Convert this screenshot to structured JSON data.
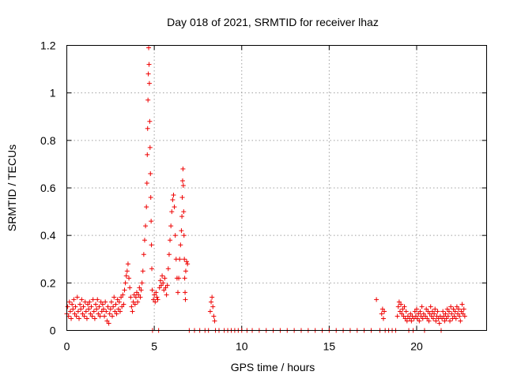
{
  "chart_data": {
    "type": "scatter",
    "title": "Day 018 of 2021, SRMTID for receiver lhaz",
    "xlabel": "GPS time / hours",
    "ylabel": "SRMTID / TECUs",
    "xlim": [
      0,
      24
    ],
    "ylim": [
      0,
      1.2
    ],
    "x_ticks": [
      0,
      5,
      10,
      15,
      20
    ],
    "x_tick_labels": [
      "0",
      "5",
      "10",
      "15",
      "20"
    ],
    "y_ticks": [
      0,
      0.2,
      0.4,
      0.6,
      0.8,
      1.0,
      1.2
    ],
    "y_tick_labels": [
      "0",
      "0.2",
      "0.4",
      "0.6",
      "0.8",
      "1",
      "1.2"
    ],
    "grid": true,
    "marker": "+",
    "color": "#ee0000",
    "series": [
      {
        "name": "lhaz",
        "points": [
          [
            0.0,
            0.07
          ],
          [
            0.05,
            0.1
          ],
          [
            0.1,
            0.06
          ],
          [
            0.15,
            0.12
          ],
          [
            0.2,
            0.08
          ],
          [
            0.25,
            0.05
          ],
          [
            0.3,
            0.11
          ],
          [
            0.35,
            0.09
          ],
          [
            0.4,
            0.13
          ],
          [
            0.45,
            0.07
          ],
          [
            0.5,
            0.1
          ],
          [
            0.55,
            0.06
          ],
          [
            0.6,
            0.14
          ],
          [
            0.65,
            0.08
          ],
          [
            0.7,
            0.05
          ],
          [
            0.75,
            0.11
          ],
          [
            0.8,
            0.09
          ],
          [
            0.85,
            0.13
          ],
          [
            0.9,
            0.07
          ],
          [
            0.95,
            0.1
          ],
          [
            1.0,
            0.06
          ],
          [
            1.05,
            0.12
          ],
          [
            1.1,
            0.08
          ],
          [
            1.15,
            0.05
          ],
          [
            1.2,
            0.11
          ],
          [
            1.25,
            0.09
          ],
          [
            1.3,
            0.12
          ],
          [
            1.35,
            0.07
          ],
          [
            1.4,
            0.1
          ],
          [
            1.45,
            0.06
          ],
          [
            1.5,
            0.13
          ],
          [
            1.55,
            0.08
          ],
          [
            1.6,
            0.05
          ],
          [
            1.65,
            0.11
          ],
          [
            1.7,
            0.09
          ],
          [
            1.75,
            0.13
          ],
          [
            1.8,
            0.07
          ],
          [
            1.85,
            0.1
          ],
          [
            1.9,
            0.06
          ],
          [
            1.95,
            0.12
          ],
          [
            2.0,
            0.08
          ],
          [
            2.05,
            0.11
          ],
          [
            2.1,
            0.09
          ],
          [
            2.15,
            0.06
          ],
          [
            2.2,
            0.12
          ],
          [
            2.25,
            0.08
          ],
          [
            2.3,
            0.04
          ],
          [
            2.35,
            0.1
          ],
          [
            2.4,
            0.03
          ],
          [
            2.45,
            0.07
          ],
          [
            2.5,
            0.09
          ],
          [
            2.55,
            0.12
          ],
          [
            2.6,
            0.06
          ],
          [
            2.65,
            0.1
          ],
          [
            2.7,
            0.14
          ],
          [
            2.75,
            0.08
          ],
          [
            2.8,
            0.11
          ],
          [
            2.85,
            0.07
          ],
          [
            2.9,
            0.13
          ],
          [
            2.95,
            0.09
          ],
          [
            3.0,
            0.12
          ],
          [
            3.05,
            0.08
          ],
          [
            3.1,
            0.14
          ],
          [
            3.15,
            0.1
          ],
          [
            3.2,
            0.15
          ],
          [
            3.25,
            0.11
          ],
          [
            3.3,
            0.17
          ],
          [
            3.35,
            0.2
          ],
          [
            3.4,
            0.23
          ],
          [
            3.45,
            0.25
          ],
          [
            3.5,
            0.28
          ],
          [
            3.55,
            0.22
          ],
          [
            3.6,
            0.18
          ],
          [
            3.65,
            0.14
          ],
          [
            3.7,
            0.1
          ],
          [
            3.75,
            0.08
          ],
          [
            3.8,
            0.12
          ],
          [
            3.85,
            0.15
          ],
          [
            3.9,
            0.11
          ],
          [
            3.95,
            0.14
          ],
          [
            4.0,
            0.16
          ],
          [
            4.05,
            0.12
          ],
          [
            4.1,
            0.15
          ],
          [
            4.15,
            0.18
          ],
          [
            4.2,
            0.14
          ],
          [
            4.25,
            0.17
          ],
          [
            4.3,
            0.2
          ],
          [
            4.35,
            0.25
          ],
          [
            4.4,
            0.32
          ],
          [
            4.45,
            0.38
          ],
          [
            4.5,
            0.44
          ],
          [
            4.55,
            0.52
          ],
          [
            4.58,
            0.62
          ],
          [
            4.6,
            0.74
          ],
          [
            4.62,
            0.85
          ],
          [
            4.64,
            0.97
          ],
          [
            4.66,
            1.08
          ],
          [
            4.68,
            1.19
          ],
          [
            4.7,
            1.12
          ],
          [
            4.72,
            1.04
          ],
          [
            4.74,
            0.88
          ],
          [
            4.76,
            0.77
          ],
          [
            4.78,
            0.66
          ],
          [
            4.8,
            0.56
          ],
          [
            4.82,
            0.46
          ],
          [
            4.84,
            0.36
          ],
          [
            4.86,
            0.26
          ],
          [
            4.88,
            0.17
          ],
          [
            4.9,
            0.0
          ],
          [
            4.95,
            0.13
          ],
          [
            5.0,
            0.15
          ],
          [
            5.05,
            0.12
          ],
          [
            5.1,
            0.16
          ],
          [
            5.15,
            0.14
          ],
          [
            5.2,
            0.13
          ],
          [
            5.25,
            0.0
          ],
          [
            5.3,
            0.18
          ],
          [
            5.35,
            0.21
          ],
          [
            5.4,
            0.19
          ],
          [
            5.45,
            0.23
          ],
          [
            5.5,
            0.2
          ],
          [
            5.55,
            0.17
          ],
          [
            5.6,
            0.22
          ],
          [
            5.65,
            0.18
          ],
          [
            5.7,
            0.15
          ],
          [
            5.75,
            0.19
          ],
          [
            5.8,
            0.26
          ],
          [
            5.85,
            0.32
          ],
          [
            5.9,
            0.38
          ],
          [
            5.95,
            0.44
          ],
          [
            6.0,
            0.5
          ],
          [
            6.05,
            0.55
          ],
          [
            6.1,
            0.57
          ],
          [
            6.15,
            0.52
          ],
          [
            6.2,
            0.4
          ],
          [
            6.25,
            0.3
          ],
          [
            6.3,
            0.22
          ],
          [
            6.35,
            0.16
          ],
          [
            6.4,
            0.22
          ],
          [
            6.45,
            0.3
          ],
          [
            6.5,
            0.36
          ],
          [
            6.55,
            0.42
          ],
          [
            6.58,
            0.48
          ],
          [
            6.6,
            0.56
          ],
          [
            6.62,
            0.63
          ],
          [
            6.64,
            0.68
          ],
          [
            6.66,
            0.61
          ],
          [
            6.68,
            0.5
          ],
          [
            6.7,
            0.4
          ],
          [
            6.72,
            0.3
          ],
          [
            6.74,
            0.22
          ],
          [
            6.76,
            0.16
          ],
          [
            6.78,
            0.13
          ],
          [
            6.8,
            0.25
          ],
          [
            6.85,
            0.29
          ],
          [
            6.9,
            0.28
          ],
          [
            7.0,
            0.0
          ],
          [
            7.3,
            0.0
          ],
          [
            7.6,
            0.0
          ],
          [
            7.9,
            0.0
          ],
          [
            8.1,
            0.0
          ],
          [
            8.2,
            0.08
          ],
          [
            8.25,
            0.12
          ],
          [
            8.3,
            0.14
          ],
          [
            8.35,
            0.1
          ],
          [
            8.4,
            0.06
          ],
          [
            8.45,
            0.04
          ],
          [
            8.5,
            0.0
          ],
          [
            8.7,
            0.0
          ],
          [
            9.0,
            0.0
          ],
          [
            9.2,
            0.0
          ],
          [
            9.4,
            0.0
          ],
          [
            9.6,
            0.0
          ],
          [
            9.8,
            0.0
          ],
          [
            10.0,
            0.0
          ],
          [
            10.3,
            0.0
          ],
          [
            10.6,
            0.0
          ],
          [
            11.0,
            0.0
          ],
          [
            11.4,
            0.0
          ],
          [
            11.8,
            0.0
          ],
          [
            12.2,
            0.0
          ],
          [
            12.6,
            0.0
          ],
          [
            13.0,
            0.0
          ],
          [
            13.4,
            0.0
          ],
          [
            13.8,
            0.0
          ],
          [
            14.2,
            0.0
          ],
          [
            14.6,
            0.0
          ],
          [
            15.0,
            0.0
          ],
          [
            15.4,
            0.0
          ],
          [
            15.8,
            0.0
          ],
          [
            16.2,
            0.0
          ],
          [
            16.6,
            0.0
          ],
          [
            17.0,
            0.0
          ],
          [
            17.4,
            0.0
          ],
          [
            17.7,
            0.13
          ],
          [
            17.9,
            0.0
          ],
          [
            18.0,
            0.07
          ],
          [
            18.05,
            0.09
          ],
          [
            18.1,
            0.05
          ],
          [
            18.15,
            0.08
          ],
          [
            18.2,
            0.0
          ],
          [
            18.4,
            0.0
          ],
          [
            18.6,
            0.0
          ],
          [
            18.8,
            0.0
          ],
          [
            18.9,
            0.06
          ],
          [
            18.95,
            0.1
          ],
          [
            19.0,
            0.12
          ],
          [
            19.05,
            0.08
          ],
          [
            19.1,
            0.11
          ],
          [
            19.15,
            0.07
          ],
          [
            19.2,
            0.09
          ],
          [
            19.25,
            0.06
          ],
          [
            19.3,
            0.1
          ],
          [
            19.35,
            0.05
          ],
          [
            19.4,
            0.08
          ],
          [
            19.45,
            0.04
          ],
          [
            19.5,
            0.06
          ],
          [
            19.55,
            0.0
          ],
          [
            19.6,
            0.05
          ],
          [
            19.65,
            0.07
          ],
          [
            19.7,
            0.04
          ],
          [
            19.75,
            0.06
          ],
          [
            19.8,
            0.0
          ],
          [
            19.85,
            0.05
          ],
          [
            19.9,
            0.08
          ],
          [
            19.95,
            0.06
          ],
          [
            20.0,
            0.09
          ],
          [
            20.05,
            0.05
          ],
          [
            20.1,
            0.07
          ],
          [
            20.15,
            0.04
          ],
          [
            20.2,
            0.08
          ],
          [
            20.25,
            0.06
          ],
          [
            20.3,
            0.1
          ],
          [
            20.35,
            0.05
          ],
          [
            20.4,
            0.07
          ],
          [
            20.45,
            0.0
          ],
          [
            20.5,
            0.06
          ],
          [
            20.55,
            0.09
          ],
          [
            20.6,
            0.05
          ],
          [
            20.65,
            0.08
          ],
          [
            20.7,
            0.04
          ],
          [
            20.75,
            0.07
          ],
          [
            20.8,
            0.1
          ],
          [
            20.85,
            0.06
          ],
          [
            20.9,
            0.08
          ],
          [
            20.95,
            0.05
          ],
          [
            21.0,
            0.07
          ],
          [
            21.05,
            0.09
          ],
          [
            21.1,
            0.04
          ],
          [
            21.15,
            0.06
          ],
          [
            21.2,
            0.08
          ],
          [
            21.25,
            0.05
          ],
          [
            21.3,
            0.03
          ],
          [
            21.35,
            0.06
          ],
          [
            21.4,
            0.0
          ],
          [
            21.45,
            0.05
          ],
          [
            21.5,
            0.08
          ],
          [
            21.55,
            0.06
          ],
          [
            21.6,
            0.04
          ],
          [
            21.65,
            0.07
          ],
          [
            21.7,
            0.05
          ],
          [
            21.75,
            0.09
          ],
          [
            21.8,
            0.06
          ],
          [
            21.85,
            0.08
          ],
          [
            21.9,
            0.04
          ],
          [
            21.95,
            0.1
          ],
          [
            22.0,
            0.07
          ],
          [
            22.05,
            0.05
          ],
          [
            22.1,
            0.09
          ],
          [
            22.15,
            0.06
          ],
          [
            22.2,
            0.08
          ],
          [
            22.25,
            0.05
          ],
          [
            22.3,
            0.1
          ],
          [
            22.35,
            0.07
          ],
          [
            22.4,
            0.09
          ],
          [
            22.45,
            0.06
          ],
          [
            22.5,
            0.04
          ],
          [
            22.55,
            0.08
          ],
          [
            22.6,
            0.11
          ],
          [
            22.65,
            0.07
          ],
          [
            22.7,
            0.09
          ],
          [
            22.75,
            0.06
          ]
        ]
      }
    ]
  }
}
